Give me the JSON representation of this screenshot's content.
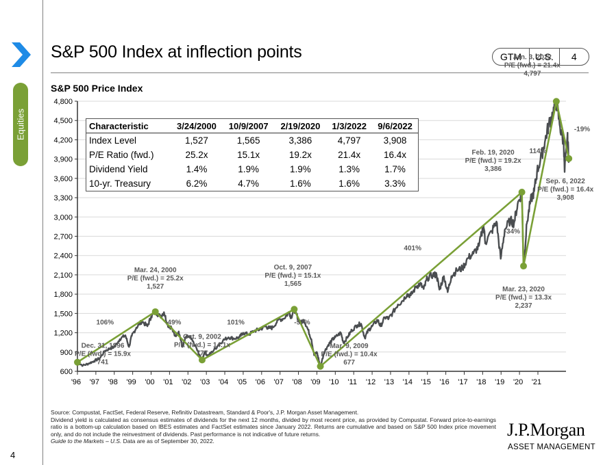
{
  "sidebar": {
    "section_tab": "Equities",
    "page_number": "4"
  },
  "header": {
    "title": "S&P 500 Index at inflection points",
    "badge": [
      "GTM",
      "U.S.",
      "4"
    ]
  },
  "colors": {
    "accent_blue": "#1e8be6",
    "accent_green": "#7aa036",
    "index_line": "#4a4d50",
    "annotation_text": "#595959"
  },
  "chart_data": {
    "type": "line",
    "title": "S&P 500 Price Index",
    "xlabel": "",
    "ylabel": "",
    "ylim": [
      600,
      4800
    ],
    "yticks": [
      600,
      900,
      1200,
      1500,
      1800,
      2100,
      2400,
      2700,
      3000,
      3300,
      3600,
      3900,
      4200,
      4500,
      4800
    ],
    "ytick_labels": [
      "600",
      "900",
      "1,200",
      "1,500",
      "1,800",
      "2,100",
      "2,400",
      "2,700",
      "3,000",
      "3,300",
      "3,600",
      "3,900",
      "4,200",
      "4,500",
      "4,800"
    ],
    "xlim": [
      1996,
      2022.8
    ],
    "xticks": [
      1996,
      1997,
      1998,
      1999,
      2000,
      2001,
      2002,
      2003,
      2004,
      2005,
      2006,
      2007,
      2008,
      2009,
      2010,
      2011,
      2012,
      2013,
      2014,
      2015,
      2016,
      2017,
      2018,
      2019,
      2020,
      2021
    ],
    "xtick_labels": [
      "'96",
      "'97",
      "'98",
      "'99",
      "'00",
      "'01",
      "'02",
      "'03",
      "'04",
      "'05",
      "'06",
      "'07",
      "'08",
      "'09",
      "'10",
      "'11",
      "'12",
      "'13",
      "'14",
      "'15",
      "'16",
      "'17",
      "'18",
      "'19",
      "'20",
      "'21"
    ],
    "grid": true,
    "series": [
      {
        "name": "S&P 500 Price Index",
        "points": [
          [
            1996.0,
            741
          ],
          [
            1996.3,
            690
          ],
          [
            1996.6,
            720
          ],
          [
            1996.9,
            760
          ],
          [
            1997.2,
            800
          ],
          [
            1997.5,
            920
          ],
          [
            1997.8,
            960
          ],
          [
            1998.0,
            980
          ],
          [
            1998.3,
            1100
          ],
          [
            1998.6,
            1160
          ],
          [
            1998.8,
            980
          ],
          [
            1998.95,
            1150
          ],
          [
            1999.2,
            1280
          ],
          [
            1999.5,
            1380
          ],
          [
            1999.8,
            1300
          ],
          [
            2000.0,
            1450
          ],
          [
            2000.23,
            1527
          ],
          [
            2000.5,
            1450
          ],
          [
            2000.7,
            1520
          ],
          [
            2000.9,
            1320
          ],
          [
            2001.1,
            1280
          ],
          [
            2001.3,
            1150
          ],
          [
            2001.5,
            1220
          ],
          [
            2001.7,
            980
          ],
          [
            2001.9,
            1140
          ],
          [
            2002.1,
            1130
          ],
          [
            2002.4,
            1000
          ],
          [
            2002.6,
            860
          ],
          [
            2002.77,
            777
          ],
          [
            2002.9,
            900
          ],
          [
            2003.1,
            840
          ],
          [
            2003.3,
            900
          ],
          [
            2003.6,
            990
          ],
          [
            2003.9,
            1080
          ],
          [
            2004.2,
            1130
          ],
          [
            2004.5,
            1110
          ],
          [
            2004.8,
            1130
          ],
          [
            2005.0,
            1200
          ],
          [
            2005.3,
            1170
          ],
          [
            2005.6,
            1230
          ],
          [
            2005.9,
            1250
          ],
          [
            2006.2,
            1300
          ],
          [
            2006.4,
            1270
          ],
          [
            2006.6,
            1280
          ],
          [
            2006.9,
            1400
          ],
          [
            2007.2,
            1420
          ],
          [
            2007.5,
            1520
          ],
          [
            2007.6,
            1440
          ],
          [
            2007.77,
            1565
          ],
          [
            2007.9,
            1480
          ],
          [
            2008.1,
            1350
          ],
          [
            2008.3,
            1400
          ],
          [
            2008.5,
            1260
          ],
          [
            2008.7,
            1100
          ],
          [
            2008.85,
            850
          ],
          [
            2009.0,
            900
          ],
          [
            2009.1,
            780
          ],
          [
            2009.19,
            677
          ],
          [
            2009.4,
            900
          ],
          [
            2009.6,
            1000
          ],
          [
            2009.8,
            1080
          ],
          [
            2010.0,
            1130
          ],
          [
            2010.3,
            1200
          ],
          [
            2010.45,
            1040
          ],
          [
            2010.7,
            1150
          ],
          [
            2010.9,
            1240
          ],
          [
            2011.2,
            1320
          ],
          [
            2011.4,
            1340
          ],
          [
            2011.6,
            1120
          ],
          [
            2011.8,
            1240
          ],
          [
            2012.0,
            1300
          ],
          [
            2012.3,
            1400
          ],
          [
            2012.45,
            1300
          ],
          [
            2012.7,
            1440
          ],
          [
            2012.9,
            1420
          ],
          [
            2013.1,
            1500
          ],
          [
            2013.4,
            1640
          ],
          [
            2013.6,
            1680
          ],
          [
            2013.9,
            1800
          ],
          [
            2014.1,
            1780
          ],
          [
            2014.4,
            1920
          ],
          [
            2014.6,
            1960
          ],
          [
            2014.8,
            1880
          ],
          [
            2015.0,
            2050
          ],
          [
            2015.3,
            2100
          ],
          [
            2015.5,
            2100
          ],
          [
            2015.65,
            1870
          ],
          [
            2015.9,
            2080
          ],
          [
            2016.1,
            1830
          ],
          [
            2016.3,
            2080
          ],
          [
            2016.6,
            2170
          ],
          [
            2016.9,
            2200
          ],
          [
            2017.2,
            2360
          ],
          [
            2017.5,
            2430
          ],
          [
            2017.8,
            2550
          ],
          [
            2018.05,
            2870
          ],
          [
            2018.15,
            2600
          ],
          [
            2018.5,
            2780
          ],
          [
            2018.75,
            2930
          ],
          [
            2018.98,
            2350
          ],
          [
            2019.2,
            2800
          ],
          [
            2019.5,
            2950
          ],
          [
            2019.7,
            2900
          ],
          [
            2019.9,
            3200
          ],
          [
            2020.13,
            3386
          ],
          [
            2020.22,
            2237
          ],
          [
            2020.4,
            2900
          ],
          [
            2020.6,
            3250
          ],
          [
            2020.8,
            3400
          ],
          [
            2020.95,
            3700
          ],
          [
            2021.2,
            3950
          ],
          [
            2021.4,
            4200
          ],
          [
            2021.6,
            4450
          ],
          [
            2021.8,
            4600
          ],
          [
            2022.0,
            4797
          ],
          [
            2022.2,
            4400
          ],
          [
            2022.4,
            4150
          ],
          [
            2022.45,
            3700
          ],
          [
            2022.6,
            4250
          ],
          [
            2022.68,
            3908
          ]
        ]
      },
      {
        "name": "Inflection path",
        "points": [
          [
            1996.0,
            741
          ],
          [
            2000.23,
            1527
          ],
          [
            2002.77,
            777
          ],
          [
            2007.77,
            1565
          ],
          [
            2009.19,
            677
          ],
          [
            2020.13,
            3386
          ],
          [
            2020.22,
            2237
          ],
          [
            2022.0,
            4797
          ],
          [
            2022.68,
            3908
          ]
        ]
      }
    ],
    "inflection_points": [
      {
        "date": "Dec. 31, 1996",
        "pe": "P/E (fwd.) = 15.9x",
        "level": "741"
      },
      {
        "date": "Mar. 24, 2000",
        "pe": "P/E (fwd.) = 25.2x",
        "level": "1,527"
      },
      {
        "date": "Oct. 9, 2002",
        "pe": "P/E (fwd.) = 14.1x",
        "level": "777"
      },
      {
        "date": "Oct. 9, 2007",
        "pe": "P/E (fwd.) = 15.1x",
        "level": "1,565"
      },
      {
        "date": "Mar. 9, 2009",
        "pe": "P/E (fwd.) = 10.4x",
        "level": "677"
      },
      {
        "date": "Feb. 19, 2020",
        "pe": "P/E (fwd.) = 19.2x",
        "level": "3,386"
      },
      {
        "date": "Mar. 23, 2020",
        "pe": "P/E (fwd.) = 13.3x",
        "level": "2,237"
      },
      {
        "date": "Jan. 3, 2022",
        "pe": "P/E (fwd.) = 21.4x",
        "level": "4,797"
      },
      {
        "date": "Sep. 6, 2022",
        "pe": "P/E (fwd.) = 16.4x",
        "level": "3,908"
      }
    ],
    "move_labels": [
      "106%",
      "-49%",
      "101%",
      "-57%",
      "401%",
      "-34%",
      "114%",
      "-19%"
    ],
    "table": {
      "headers": [
        "Characteristic",
        "3/24/2000",
        "10/9/2007",
        "2/19/2020",
        "1/3/2022",
        "9/6/2022"
      ],
      "rows": [
        [
          "Index Level",
          "1,527",
          "1,565",
          "3,386",
          "4,797",
          "3,908"
        ],
        [
          "P/E Ratio (fwd.)",
          "25.2x",
          "15.1x",
          "19.2x",
          "21.4x",
          "16.4x"
        ],
        [
          "Dividend Yield",
          "1.4%",
          "1.9%",
          "1.9%",
          "1.3%",
          "1.7%"
        ],
        [
          "10-yr. Treasury",
          "6.2%",
          "4.7%",
          "1.6%",
          "1.6%",
          "3.3%"
        ]
      ]
    }
  },
  "footer": {
    "source": "Source: Compustat, FactSet, Federal Reserve, Refinitiv Datastream, Standard & Poor's, J.P. Morgan Asset Management.",
    "note1": "Dividend yield is calculated as consensus estimates of dividends for the next 12 months, divided by most recent price, as provided by Compustat. Forward price-to-earnings ratio is a bottom-up calculation based on IBES estimates and FactSet estimates since January 2022. Returns are cumulative and based on S&P 500 Index price movement only, and do not include the reinvestment of dividends. Past performance is not indicative of future returns.",
    "guide_italic": "Guide to the Markets – U.S.",
    "guide_rest": " Data are as of September 30, 2022."
  },
  "logo": {
    "name": "J.P.Morgan",
    "sub": "ASSET MANAGEMENT"
  }
}
